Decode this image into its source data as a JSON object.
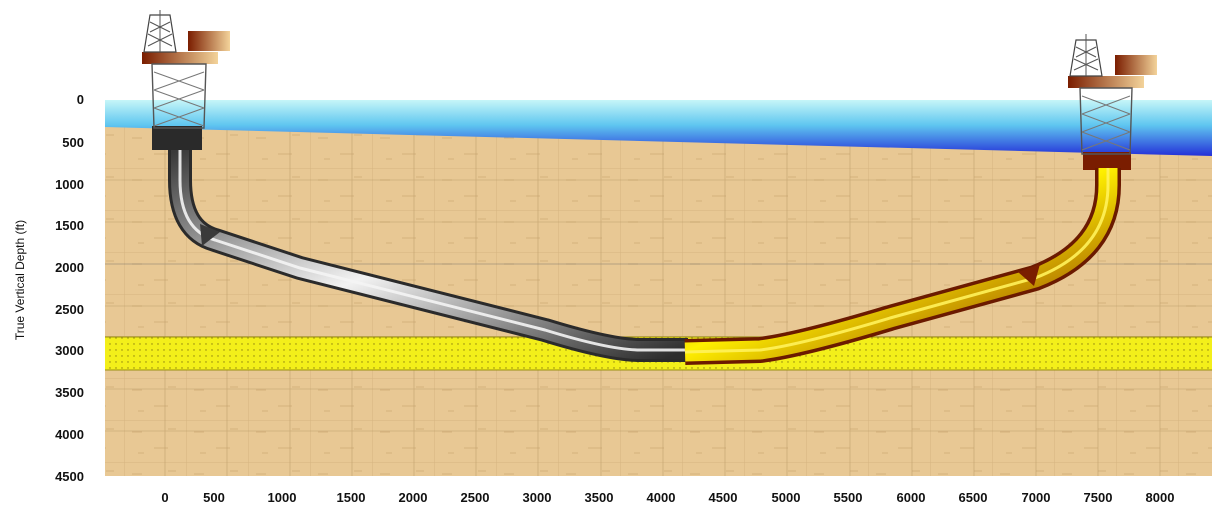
{
  "diagram": {
    "y_axis_title": "True Vertical Depth (ft)",
    "y_ticks": [
      "0",
      "500",
      "1000",
      "1500",
      "2000",
      "2500",
      "3000",
      "3500",
      "4000",
      "4500"
    ],
    "x_ticks": [
      "0",
      "500",
      "1000",
      "1500",
      "2000",
      "2500",
      "3000",
      "3500",
      "4000",
      "4500",
      "5000",
      "5500",
      "6000",
      "6500",
      "7000",
      "7500",
      "8000"
    ]
  },
  "colors": {
    "water_top": "#bff2f7",
    "water_bottom": "#2b2fd6",
    "sand": "#e7c796",
    "reservoir": "#f2ee18",
    "left_pipe": "#8a8a8a",
    "right_pipe": "#d9a400"
  },
  "icons": [
    "drilling-rig-icon",
    "drilling-rig-icon"
  ]
}
